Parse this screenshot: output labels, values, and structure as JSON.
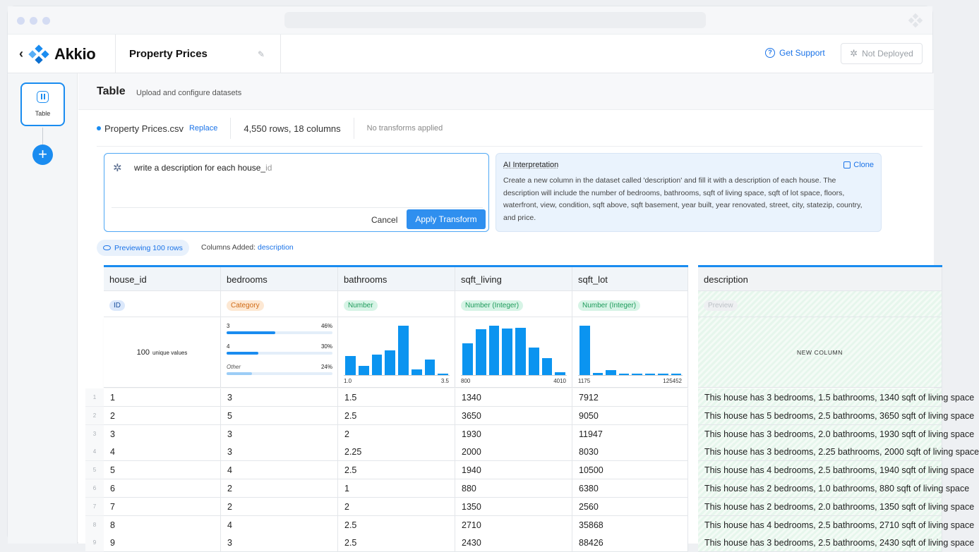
{
  "header": {
    "brand": "Akkio",
    "project_title": "Property Prices",
    "support_label": "Get Support",
    "deploy_status": "Not Deployed"
  },
  "rail": {
    "items": [
      {
        "label": "Table",
        "icon": "table-icon"
      }
    ]
  },
  "page": {
    "title": "Table",
    "subtitle": "Upload and configure datasets"
  },
  "file": {
    "name": "Property Prices.csv",
    "replace_label": "Replace",
    "summary": "4,550 rows, 18 columns",
    "transforms": "No transforms applied"
  },
  "prompt": {
    "text": "write a description for each house_",
    "text_suffix": "id",
    "cancel_label": "Cancel",
    "apply_label": "Apply Transform"
  },
  "ai": {
    "title": "AI Interpretation",
    "clone_label": "Clone",
    "text": "Create a new column in the dataset called 'description' and fill it with a description of each house. The description will include the number of bedrooms, bathrooms, sqft of living space, sqft of lot space, floors, waterfront, view, condition, sqft above, sqft basement, year built, year renovated, street, city, statezip, country, and price."
  },
  "preview": {
    "label": "Previewing 100 rows",
    "cols_added_label": "Columns Added:",
    "cols_added_value": "description"
  },
  "columns": [
    {
      "name": "house_id",
      "type": "ID",
      "type_style": "id",
      "stat": "unique",
      "unique_count": "100",
      "unique_label": "unique values"
    },
    {
      "name": "bedrooms",
      "type": "Category",
      "type_style": "cat",
      "stat": "category",
      "categories": [
        {
          "label": "3",
          "pct_text": "46%",
          "pct": 0.46
        },
        {
          "label": "4",
          "pct_text": "30%",
          "pct": 0.3
        },
        {
          "label": "Other",
          "pct_text": "24%",
          "pct": 0.24
        }
      ]
    },
    {
      "name": "bathrooms",
      "type": "Number",
      "type_style": "num",
      "stat": "hist",
      "min": "1.0",
      "max": "3.5",
      "hist": [
        0.38,
        0.18,
        0.41,
        0.5,
        1.0,
        0.12,
        0.31,
        0.03
      ]
    },
    {
      "name": "sqft_living",
      "type": "Number (Integer)",
      "type_style": "num",
      "stat": "hist",
      "min": "800",
      "max": "4010",
      "hist": [
        0.64,
        0.93,
        1.0,
        0.95,
        0.96,
        0.56,
        0.35,
        0.06
      ]
    },
    {
      "name": "sqft_lot",
      "type": "Number (Integer)",
      "type_style": "num",
      "stat": "hist",
      "min": "1175",
      "max": "125452",
      "hist": [
        1.0,
        0.04,
        0.1,
        0.03,
        0.03,
        0.03,
        0.01,
        0.0
      ]
    },
    {
      "name": "description",
      "type": "Preview",
      "type_style": "prev",
      "stat": "new",
      "new_label": "NEW COLUMN"
    }
  ],
  "rows": [
    {
      "n": "1",
      "cells": [
        "1",
        "3",
        "1.5",
        "1340",
        "7912",
        "This house has 3 bedrooms, 1.5 bathrooms, 1340 sqft of living space"
      ]
    },
    {
      "n": "2",
      "cells": [
        "2",
        "5",
        "2.5",
        "3650",
        "9050",
        "This house has 5 bedrooms, 2.5 bathrooms, 3650 sqft of living space"
      ]
    },
    {
      "n": "3",
      "cells": [
        "3",
        "3",
        "2",
        "1930",
        "11947",
        "This house has 3 bedrooms, 2.0 bathrooms, 1930 sqft of living space"
      ]
    },
    {
      "n": "4",
      "cells": [
        "4",
        "3",
        "2.25",
        "2000",
        "8030",
        "This house has 3 bedrooms, 2.25 bathrooms, 2000 sqft of living space"
      ]
    },
    {
      "n": "5",
      "cells": [
        "5",
        "4",
        "2.5",
        "1940",
        "10500",
        "This house has 4 bedrooms, 2.5 bathrooms, 1940 sqft of living space"
      ]
    },
    {
      "n": "6",
      "cells": [
        "6",
        "2",
        "1",
        "880",
        "6380",
        "This house has 2 bedrooms, 1.0 bathrooms, 880 sqft of living space"
      ]
    },
    {
      "n": "7",
      "cells": [
        "7",
        "2",
        "2",
        "1350",
        "2560",
        "This house has 2 bedrooms, 2.0 bathrooms, 1350 sqft of living space"
      ]
    },
    {
      "n": "8",
      "cells": [
        "8",
        "4",
        "2.5",
        "2710",
        "35868",
        "This house has 4 bedrooms, 2.5 bathrooms, 2710 sqft of living space"
      ]
    },
    {
      "n": "9",
      "cells": [
        "9",
        "3",
        "2.5",
        "2430",
        "88426",
        "This house has 3 bedrooms, 2.5 bathrooms, 2430 sqft of living space"
      ]
    }
  ],
  "colors": {
    "accent": "#1a8cf0",
    "desc_bg": "#e7f7ec"
  }
}
